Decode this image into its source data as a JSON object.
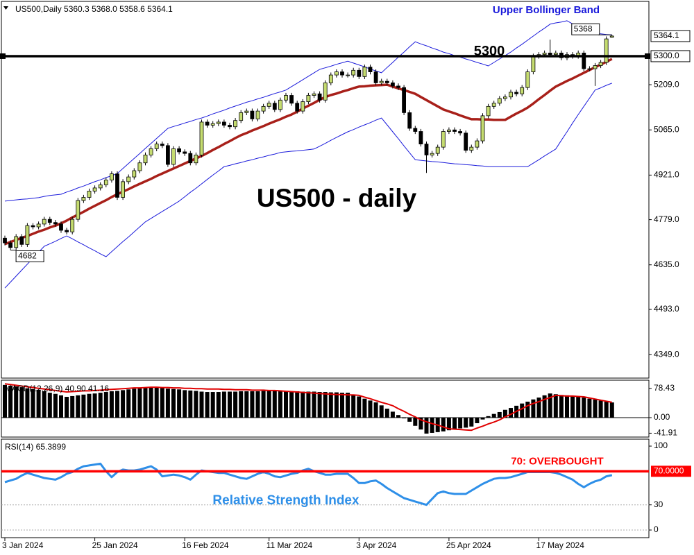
{
  "chart_data": [
    {
      "type": "candlestick",
      "header": "US500,Daily  5360.3 5368.0 5358.6 5364.1",
      "title": "US500 - daily",
      "up_color": "#c5dc70",
      "down_color": "#000000",
      "ylim": [
        4274,
        5479
      ],
      "yticks": [
        {
          "value": 5209,
          "label": "5209.0"
        },
        {
          "value": 5065,
          "label": "5065.0"
        },
        {
          "value": 4921,
          "label": "4921.0"
        },
        {
          "value": 4779,
          "label": "4779.0"
        },
        {
          "value": 4635,
          "label": "4635.0"
        },
        {
          "value": 4493,
          "label": "4493.0"
        },
        {
          "value": 4349,
          "label": "4349.0"
        }
      ],
      "level": {
        "value": 5300,
        "axis_label": "5300.0"
      },
      "open": [
        4720,
        4705,
        4690,
        4725,
        4700,
        4760,
        4756,
        4765,
        4780,
        4770,
        4765,
        4745,
        4740,
        4780,
        4840,
        4850,
        4870,
        4880,
        4890,
        4905,
        4925,
        4850,
        4900,
        4915,
        4935,
        4960,
        4985,
        5005,
        5020,
        5015,
        4955,
        5005,
        4995,
        4990,
        4960,
        4985,
        5090,
        5080,
        5085,
        5090,
        5080,
        5075,
        5095,
        5120,
        5125,
        5100,
        5125,
        5140,
        5150,
        5130,
        5160,
        5175,
        5150,
        5125,
        5155,
        5175,
        5180,
        5160,
        5215,
        5240,
        5250,
        5240,
        5240,
        5255,
        5235,
        5265,
        5250,
        5215,
        5220,
        5215,
        5205,
        5200,
        5120,
        5070,
        5060,
        5020,
        4985,
        4990,
        5010,
        5060,
        5065,
        5060,
        5055,
        5000,
        5010,
        5030,
        5110,
        5140,
        5150,
        5165,
        5170,
        5185,
        5180,
        5200,
        5250,
        5300,
        5305,
        5310,
        5305,
        5310,
        5295,
        5305,
        5300,
        5310,
        5260,
        5260,
        5270,
        5280,
        5360.3
      ],
      "high": [
        4728,
        4713,
        4733,
        4733,
        4768,
        4768,
        4773,
        4788,
        4788,
        4778,
        4773,
        4753,
        4788,
        4848,
        4858,
        4878,
        4888,
        4898,
        4913,
        4933,
        4933,
        4908,
        4923,
        4943,
        4968,
        4993,
        5013,
        5028,
        5028,
        5023,
        5013,
        5013,
        5003,
        4998,
        4993,
        5098,
        5098,
        5093,
        5098,
        5098,
        5088,
        5103,
        5128,
        5133,
        5133,
        5133,
        5148,
        5158,
        5158,
        5168,
        5183,
        5183,
        5158,
        5163,
        5183,
        5188,
        5188,
        5223,
        5248,
        5258,
        5258,
        5248,
        5263,
        5263,
        5273,
        5273,
        5258,
        5228,
        5228,
        5223,
        5213,
        5208,
        5128,
        5078,
        5068,
        5028,
        4998,
        5018,
        5068,
        5073,
        5073,
        5068,
        5063,
        5018,
        5038,
        5118,
        5148,
        5158,
        5173,
        5178,
        5193,
        5193,
        5208,
        5258,
        5308,
        5313,
        5318,
        5352.7,
        5318,
        5318,
        5313,
        5313,
        5318,
        5318,
        5268,
        5278,
        5288,
        5363,
        5368
      ],
      "low": [
        4697,
        4682,
        4682,
        4692,
        4692,
        4748,
        4748,
        4757,
        4762,
        4757,
        4737,
        4732,
        4732,
        4772,
        4832,
        4842,
        4862,
        4872,
        4882,
        4897,
        4842,
        4842,
        4892,
        4907,
        4927,
        4952,
        4977,
        4997,
        5007,
        4947,
        4947,
        4987,
        4982,
        4952,
        4952,
        4977,
        5072,
        5072,
        5077,
        5072,
        5067,
        5067,
        5087,
        5112,
        5092,
        5092,
        5117,
        5132,
        5122,
        5122,
        5152,
        5142,
        5117,
        5117,
        5147,
        5167,
        5152,
        5152,
        5207,
        5232,
        5232,
        5232,
        5232,
        5227,
        5227,
        5242,
        5207,
        5207,
        5207,
        5197,
        5192,
        5112,
        5062,
        5052,
        5012,
        4927.8,
        4977,
        4982,
        5002,
        5052,
        5052,
        5047,
        4992,
        4992,
        5002,
        5022,
        5102,
        5132,
        5142,
        5157,
        5162,
        5172,
        5172,
        5192,
        5242,
        5292,
        5297,
        5297,
        5297,
        5287,
        5287,
        5292,
        5292,
        5252,
        5252,
        5205,
        5262,
        5272,
        5358.6
      ],
      "close": [
        4705,
        4690,
        4725,
        4700,
        4760,
        4756,
        4765,
        4780,
        4770,
        4765,
        4745,
        4740,
        4780,
        4840,
        4850,
        4870,
        4880,
        4890,
        4905,
        4925,
        4850,
        4900,
        4915,
        4935,
        4960,
        4985,
        5005,
        5020,
        5015,
        4955,
        5005,
        4995,
        4990,
        4960,
        4985,
        5090,
        5080,
        5085,
        5090,
        5080,
        5075,
        5095,
        5120,
        5125,
        5100,
        5125,
        5140,
        5150,
        5130,
        5160,
        5175,
        5150,
        5125,
        5155,
        5175,
        5180,
        5160,
        5215,
        5240,
        5250,
        5240,
        5240,
        5255,
        5235,
        5265,
        5250,
        5215,
        5220,
        5215,
        5205,
        5200,
        5120,
        5070,
        5060,
        5020,
        4985,
        4990,
        5010,
        5060,
        5065,
        5060,
        5055,
        5000,
        5010,
        5030,
        5110,
        5140,
        5150,
        5165,
        5170,
        5185,
        5180,
        5200,
        5250,
        5300,
        5305,
        5310,
        5305,
        5310,
        5295,
        5305,
        5300,
        5310,
        5260,
        5260,
        5270,
        5280,
        5355,
        5364.1
      ],
      "ma": {
        "color": "#a8201a",
        "values": [
          4701,
          4708,
          4714,
          4721,
          4727,
          4734,
          4741,
          4747,
          4754,
          4760,
          4767,
          4776,
          4786,
          4795,
          4804,
          4814,
          4823,
          4832,
          4841,
          4851,
          4860,
          4868,
          4876,
          4885,
          4893,
          4901,
          4909,
          4918,
          4926,
          4934,
          4942,
          4950,
          4958,
          4966,
          4974,
          4982,
          4991,
          5001,
          5010,
          5020,
          5029,
          5039,
          5048,
          5055,
          5063,
          5070,
          5077,
          5085,
          5092,
          5099,
          5107,
          5114,
          5123,
          5133,
          5142,
          5151,
          5161,
          5170,
          5176,
          5181,
          5187,
          5192,
          5198,
          5203,
          5204,
          5206,
          5207,
          5208,
          5209,
          5203,
          5197,
          5192,
          5186,
          5180,
          5170,
          5160,
          5150,
          5140,
          5130,
          5124,
          5118,
          5111,
          5105,
          5099,
          5099,
          5098,
          5098,
          5097,
          5097,
          5097,
          5107,
          5117,
          5126,
          5136,
          5149,
          5163,
          5176,
          5190,
          5203,
          5212,
          5221,
          5229,
          5238,
          5247,
          5256,
          5265,
          5273,
          5282,
          5291
        ]
      },
      "upper_band": {
        "label": "Upper Bollinger Band",
        "color": "#1a1adb",
        "values": [
          4838,
          4840,
          4842,
          4844,
          4845,
          4847,
          4849,
          4853,
          4856,
          4858,
          4860,
          4867,
          4873,
          4880,
          4886,
          4893,
          4900,
          4906,
          4913,
          4919,
          4926,
          4942,
          4958,
          4974,
          4990,
          5006,
          5022,
          5038,
          5054,
          5070,
          5076,
          5081,
          5087,
          5092,
          5098,
          5103,
          5109,
          5116,
          5122,
          5128,
          5135,
          5141,
          5147,
          5153,
          5158,
          5164,
          5169,
          5175,
          5181,
          5186,
          5192,
          5203,
          5214,
          5225,
          5236,
          5247,
          5258,
          5263,
          5268,
          5274,
          5279,
          5284,
          5278,
          5272,
          5266,
          5259,
          5253,
          5247,
          5264,
          5280,
          5297,
          5313,
          5330,
          5346,
          5339,
          5333,
          5326,
          5320,
          5313,
          5308,
          5302,
          5297,
          5291,
          5286,
          5280,
          5275,
          5269,
          5280,
          5291,
          5302,
          5313,
          5326,
          5338,
          5351,
          5364,
          5377,
          5389,
          5402,
          5406,
          5409,
          5413,
          5403,
          5393,
          5383,
          5373,
          5372,
          5371,
          5369,
          5368
        ]
      },
      "lower_band": {
        "color": "#1a1adb",
        "values": [
          4561,
          4580,
          4599,
          4618,
          4637,
          4656,
          4675,
          4694,
          4702,
          4710,
          4719,
          4727,
          4718,
          4708,
          4699,
          4689,
          4680,
          4670,
          4661,
          4677,
          4693,
          4709,
          4724,
          4740,
          4756,
          4772,
          4783,
          4794,
          4805,
          4816,
          4827,
          4838,
          4852,
          4866,
          4879,
          4893,
          4907,
          4921,
          4934,
          4948,
          4952,
          4957,
          4961,
          4966,
          4970,
          4975,
          4979,
          4984,
          4988,
          4993,
          4995,
          4997,
          4998,
          5000,
          5002,
          5004,
          5013,
          5022,
          5032,
          5041,
          5050,
          5059,
          5066,
          5074,
          5081,
          5088,
          5096,
          5103,
          5081,
          5059,
          5037,
          5014,
          4992,
          4970,
          4968,
          4966,
          4964,
          4963,
          4961,
          4959,
          4957,
          4956,
          4954,
          4953,
          4951,
          4950,
          4948,
          4948,
          4948,
          4948,
          4948,
          4948,
          4948,
          4948,
          4959,
          4970,
          4982,
          4993,
          5004,
          5032,
          5059,
          5087,
          5114,
          5140,
          5166,
          5192,
          5199,
          5207,
          5214
        ]
      }
    },
    {
      "type": "macd",
      "label": "MACD(12,26,9) 40.90 41.16",
      "color": "#000000",
      "ylim": [
        -52.3,
        100.8
      ],
      "yticks": [
        78.43,
        {
          "value": 0,
          "label": "0.00"
        },
        -41.91
      ],
      "values": [
        88,
        86,
        84,
        82,
        79,
        77,
        75,
        71,
        67,
        64,
        60,
        56,
        58,
        60,
        62,
        64,
        65,
        67,
        69,
        71,
        72,
        74,
        76,
        78,
        80,
        81,
        82,
        81,
        80,
        78,
        77,
        76,
        74,
        73,
        72,
        70,
        69,
        69,
        69,
        70,
        70,
        70,
        71,
        71,
        71,
        71,
        72,
        72,
        72,
        72,
        72,
        71,
        71,
        70,
        70,
        70,
        69,
        69,
        68,
        68,
        67,
        67,
        62,
        57,
        51,
        46,
        41,
        33,
        24,
        16,
        7,
        -2,
        -11,
        -22,
        -32,
        -43,
        -41,
        -39,
        -37,
        -34,
        -32,
        -29,
        -27,
        -24,
        -15,
        -5,
        4,
        10,
        15,
        21,
        26,
        32,
        38,
        43,
        49,
        54,
        60,
        65,
        63,
        61,
        60,
        58,
        56,
        54,
        51,
        49,
        46,
        43,
        40.9
      ],
      "signal": {
        "color": "#e00000",
        "values": [
          91,
          89,
          87,
          85,
          83,
          81,
          79,
          77,
          75,
          73,
          71,
          69,
          70,
          71,
          72,
          72,
          73,
          74,
          75,
          76,
          77,
          78,
          79,
          80,
          80,
          81,
          82,
          82,
          81,
          81,
          80,
          80,
          79,
          79,
          78,
          78,
          77,
          77,
          77,
          76,
          76,
          75,
          75,
          75,
          74,
          74,
          74,
          73,
          73,
          72,
          71,
          70,
          69,
          68,
          67,
          66,
          65,
          64,
          63,
          62,
          62,
          61,
          61,
          60,
          55,
          51,
          46,
          41,
          37,
          32,
          24,
          17,
          9,
          2,
          -6,
          -11,
          -16,
          -20,
          -25,
          -30,
          -31,
          -32,
          -33,
          -34,
          -28,
          -23,
          -17,
          -12,
          -6,
          2,
          9,
          17,
          24,
          32,
          38,
          43,
          49,
          54,
          60,
          59,
          58,
          58,
          57,
          56,
          53,
          50,
          47,
          44,
          41.16
        ]
      }
    },
    {
      "type": "line",
      "label": "RSI(14) 65.3899",
      "annotation": "Relative Strength Index",
      "color": "#2e8fe8",
      "ylim": [
        -9.1,
        108.3
      ],
      "yticks": [
        100,
        30,
        0
      ],
      "level": {
        "value": 70,
        "label": "70.0000",
        "text": "70: OVERBOUGHT",
        "color": "#ff0000"
      },
      "values": [
        57,
        59,
        61,
        65,
        68,
        66,
        64,
        62,
        61,
        60,
        63,
        67,
        69,
        73,
        76,
        77,
        78,
        79,
        70,
        63,
        69,
        72,
        71,
        71,
        72,
        74,
        76,
        72,
        64,
        65,
        66,
        65,
        63,
        60,
        66,
        71,
        70,
        69,
        68,
        68,
        66,
        64,
        62,
        61,
        64,
        67,
        69,
        67,
        64,
        63,
        65,
        67,
        68,
        71,
        73,
        70,
        68,
        66,
        66,
        67,
        67,
        67,
        62,
        56,
        56,
        58,
        59,
        55,
        50,
        46,
        42,
        38,
        36,
        34,
        32,
        30,
        37,
        44,
        46,
        44,
        43,
        43,
        43,
        47,
        51,
        55,
        58,
        61,
        62,
        62,
        63,
        65,
        67,
        69,
        69,
        69,
        69,
        69,
        68,
        66,
        63,
        60,
        55,
        51,
        55,
        58,
        60,
        64,
        65.3899
      ],
      "categories": [
        "3 Jan 2024",
        null,
        null,
        null,
        null,
        null,
        null,
        null,
        null,
        null,
        null,
        null,
        null,
        null,
        null,
        null,
        "25 Jan 2024",
        null,
        null,
        null,
        null,
        null,
        null,
        null,
        null,
        null,
        null,
        null,
        null,
        null,
        null,
        null,
        "16 Feb 2024",
        null,
        null,
        null,
        null,
        null,
        null,
        null,
        null,
        null,
        null,
        null,
        null,
        null,
        null,
        "11 Mar 2024",
        null,
        null,
        null,
        null,
        null,
        null,
        null,
        null,
        null,
        null,
        null,
        null,
        null,
        null,
        null,
        "3 Apr 2024",
        null,
        null,
        null,
        null,
        null,
        null,
        null,
        null,
        null,
        null,
        null,
        null,
        null,
        null,
        null,
        "25 Apr 2024",
        null,
        null,
        null,
        null,
        null,
        null,
        null,
        null,
        null,
        null,
        null,
        null,
        null,
        null,
        null,
        "17 May 2024",
        null,
        null,
        null,
        null,
        null,
        null,
        null,
        null,
        null,
        null,
        null,
        null,
        null
      ]
    }
  ]
}
